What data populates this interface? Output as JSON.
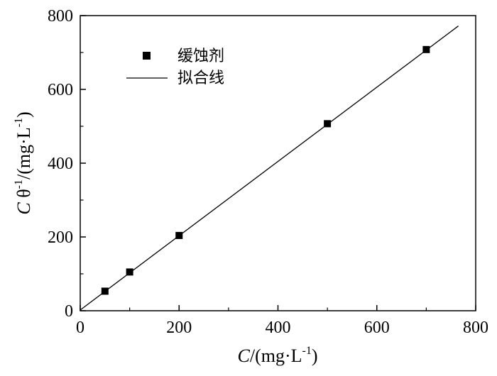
{
  "chart_data": {
    "type": "scatter",
    "x_label": {
      "italic": "C",
      "rest": "/(mg·L",
      "sup": "-1",
      "close": ")"
    },
    "y_label": {
      "italic": "C",
      "theta": " θ",
      "sup1": "-1",
      "rest": "/(mg·L",
      "sup2": "-1",
      "close": ")"
    },
    "xlim": [
      0,
      800
    ],
    "ylim": [
      0,
      800
    ],
    "x_ticks": [
      0,
      200,
      400,
      600,
      800
    ],
    "y_ticks": [
      0,
      200,
      400,
      600,
      800
    ],
    "x_tick_labels": [
      "0",
      "200",
      "400",
      "600",
      "800"
    ],
    "y_tick_labels": [
      "0",
      "200",
      "400",
      "600",
      "800"
    ],
    "grid": false,
    "legend_position": "top-left",
    "series": [
      {
        "name": "缓蚀剂",
        "kind": "points",
        "marker": "square",
        "color": "#000000",
        "x": [
          50,
          100,
          200,
          500,
          700
        ],
        "y": [
          53,
          105,
          204,
          507,
          708
        ]
      },
      {
        "name": "拟合线",
        "kind": "line",
        "color": "#000000",
        "x": [
          0,
          765
        ],
        "y": [
          2,
          772
        ]
      }
    ]
  }
}
